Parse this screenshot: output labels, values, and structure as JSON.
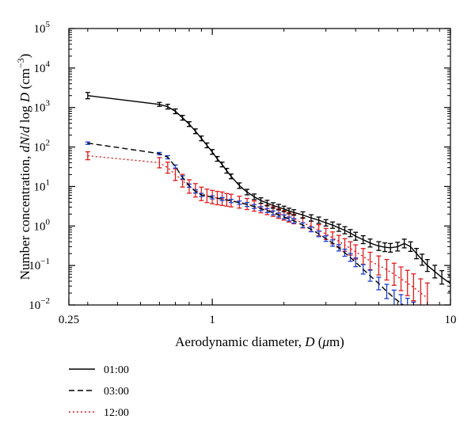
{
  "chart_data": {
    "type": "line",
    "xlabel": {
      "prefix": "Aerodynamic diameter, ",
      "symbol": "D",
      "unit_open": " (",
      "unit_mu": "μ",
      "unit_rest": "m)"
    },
    "ylabel": {
      "prefix": "Number concentration, ",
      "dn": "dN",
      "slash": "/",
      "d": "d",
      "log": " log ",
      "D": "D",
      "unit": " (cm",
      "exp": "−3",
      "close": ")"
    },
    "x_scale": "log",
    "y_scale": "log",
    "xlim": [
      0.25,
      10
    ],
    "ylim": [
      0.01,
      100000
    ],
    "x_ticks": [
      {
        "value": 0.25,
        "label": "0.25"
      },
      {
        "value": 1,
        "label": "1"
      },
      {
        "value": 10,
        "label": "10"
      }
    ],
    "y_ticks": [
      {
        "value": 0.01,
        "base": "10",
        "exp": "−2"
      },
      {
        "value": 0.1,
        "base": "10",
        "exp": "−1"
      },
      {
        "value": 1,
        "base": "10",
        "exp": "0"
      },
      {
        "value": 10,
        "base": "10",
        "exp": "1"
      },
      {
        "value": 100,
        "base": "10",
        "exp": "2"
      },
      {
        "value": 1000,
        "base": "10",
        "exp": "3"
      },
      {
        "value": 10000,
        "base": "10",
        "exp": "4"
      },
      {
        "value": 100000,
        "base": "10",
        "exp": "5"
      }
    ],
    "grid": false,
    "legend_position": "below-left",
    "series": [
      {
        "name": "01:00",
        "line_style": "solid",
        "line_color": "#000000",
        "errorbar_color": "#000000",
        "x": [
          0.3,
          0.6,
          0.65,
          0.7,
          0.75,
          0.8,
          0.85,
          0.9,
          0.95,
          1.0,
          1.05,
          1.1,
          1.15,
          1.2,
          1.3,
          1.4,
          1.5,
          1.6,
          1.7,
          1.8,
          1.9,
          2.0,
          2.1,
          2.2,
          2.4,
          2.6,
          2.8,
          3.0,
          3.2,
          3.4,
          3.6,
          3.8,
          4.0,
          4.3,
          4.6,
          5.0,
          5.3,
          5.6,
          6.0,
          6.4,
          6.8,
          7.2,
          7.6,
          8.0,
          8.6,
          9.2,
          10.0
        ],
        "y": [
          2000,
          1200,
          1050,
          800,
          550,
          380,
          250,
          165,
          110,
          75,
          50,
          36,
          25,
          18,
          10.5,
          7.2,
          5.5,
          4.4,
          3.8,
          3.3,
          3.0,
          2.7,
          2.4,
          2.2,
          1.9,
          1.6,
          1.4,
          1.2,
          1.05,
          0.9,
          0.78,
          0.66,
          0.55,
          0.45,
          0.37,
          0.31,
          0.29,
          0.28,
          0.3,
          0.36,
          0.3,
          0.2,
          0.14,
          0.1,
          0.07,
          0.05,
          0.035
        ],
        "err": [
          0.08,
          0.05,
          0.06,
          0.06,
          0.06,
          0.06,
          0.06,
          0.06,
          0.06,
          0.06,
          0.06,
          0.06,
          0.06,
          0.06,
          0.07,
          0.07,
          0.07,
          0.07,
          0.07,
          0.07,
          0.07,
          0.07,
          0.07,
          0.07,
          0.08,
          0.08,
          0.08,
          0.08,
          0.08,
          0.09,
          0.09,
          0.09,
          0.1,
          0.1,
          0.1,
          0.11,
          0.11,
          0.11,
          0.11,
          0.11,
          0.12,
          0.13,
          0.14,
          0.15,
          0.16,
          0.17,
          0.2
        ]
      },
      {
        "name": "03:00",
        "line_style": "dashed",
        "line_color": "#000000",
        "errorbar_color": "#1a3fd1",
        "x": [
          0.3,
          0.6,
          0.65,
          0.7,
          0.75,
          0.8,
          0.85,
          0.9,
          1.0,
          1.1,
          1.2,
          1.3,
          1.4,
          1.5,
          1.6,
          1.7,
          1.8,
          1.9,
          2.0,
          2.1,
          2.2,
          2.4,
          2.6,
          2.8,
          3.0,
          3.2,
          3.4,
          3.6,
          3.8,
          4.0,
          4.3,
          4.6,
          5.0,
          5.4,
          5.8,
          6.2,
          6.6,
          7.0
        ],
        "y": [
          125,
          68,
          55,
          32,
          17,
          10.5,
          7.5,
          6.1,
          5.3,
          4.8,
          4.3,
          3.9,
          3.5,
          3.1,
          2.75,
          2.45,
          2.15,
          1.9,
          1.7,
          1.5,
          1.35,
          1.05,
          0.82,
          0.63,
          0.48,
          0.37,
          0.28,
          0.21,
          0.16,
          0.12,
          0.08,
          0.055,
          0.035,
          0.022,
          0.015,
          0.011,
          0.0085,
          0.0065
        ],
        "err": [
          0.03,
          0.03,
          0.04,
          0.04,
          0.04,
          0.04,
          0.04,
          0.04,
          0.04,
          0.04,
          0.04,
          0.04,
          0.05,
          0.05,
          0.05,
          0.05,
          0.05,
          0.05,
          0.05,
          0.05,
          0.06,
          0.06,
          0.06,
          0.07,
          0.07,
          0.08,
          0.08,
          0.09,
          0.1,
          0.11,
          0.12,
          0.14,
          0.16,
          0.18,
          0.2,
          0.22,
          0.24,
          0.26
        ]
      },
      {
        "name": "12:00",
        "line_style": "dotted",
        "line_color": "#e41a1c",
        "errorbar_color": "#e41a1c",
        "x": [
          0.3,
          0.6,
          0.65,
          0.7,
          0.75,
          0.8,
          0.85,
          0.9,
          0.95,
          1.0,
          1.05,
          1.1,
          1.15,
          1.2,
          1.3,
          1.4,
          1.5,
          1.6,
          1.7,
          1.8,
          1.9,
          2.0,
          2.1,
          2.2,
          2.4,
          2.6,
          2.8,
          3.0,
          3.2,
          3.4,
          3.6,
          3.8,
          4.0,
          4.3,
          4.6,
          5.0,
          5.4,
          5.8,
          6.2,
          6.6,
          7.0,
          7.5,
          8.0
        ],
        "y": [
          60,
          40,
          30,
          20,
          14,
          10,
          8,
          6.5,
          5.8,
          5.4,
          5.1,
          4.9,
          4.6,
          4.4,
          4.0,
          3.6,
          3.2,
          2.85,
          2.55,
          2.3,
          2.05,
          1.85,
          1.65,
          1.5,
          1.2,
          0.98,
          0.78,
          0.63,
          0.5,
          0.41,
          0.33,
          0.27,
          0.22,
          0.17,
          0.13,
          0.1,
          0.078,
          0.06,
          0.046,
          0.036,
          0.028,
          0.02,
          0.015
        ],
        "err": [
          0.1,
          0.13,
          0.14,
          0.15,
          0.16,
          0.17,
          0.17,
          0.17,
          0.17,
          0.17,
          0.17,
          0.17,
          0.16,
          0.16,
          0.15,
          0.14,
          0.13,
          0.12,
          0.12,
          0.12,
          0.12,
          0.12,
          0.12,
          0.12,
          0.13,
          0.13,
          0.14,
          0.14,
          0.15,
          0.15,
          0.16,
          0.17,
          0.18,
          0.2,
          0.22,
          0.24,
          0.26,
          0.28,
          0.3,
          0.32,
          0.34,
          0.36,
          0.38
        ]
      }
    ]
  }
}
